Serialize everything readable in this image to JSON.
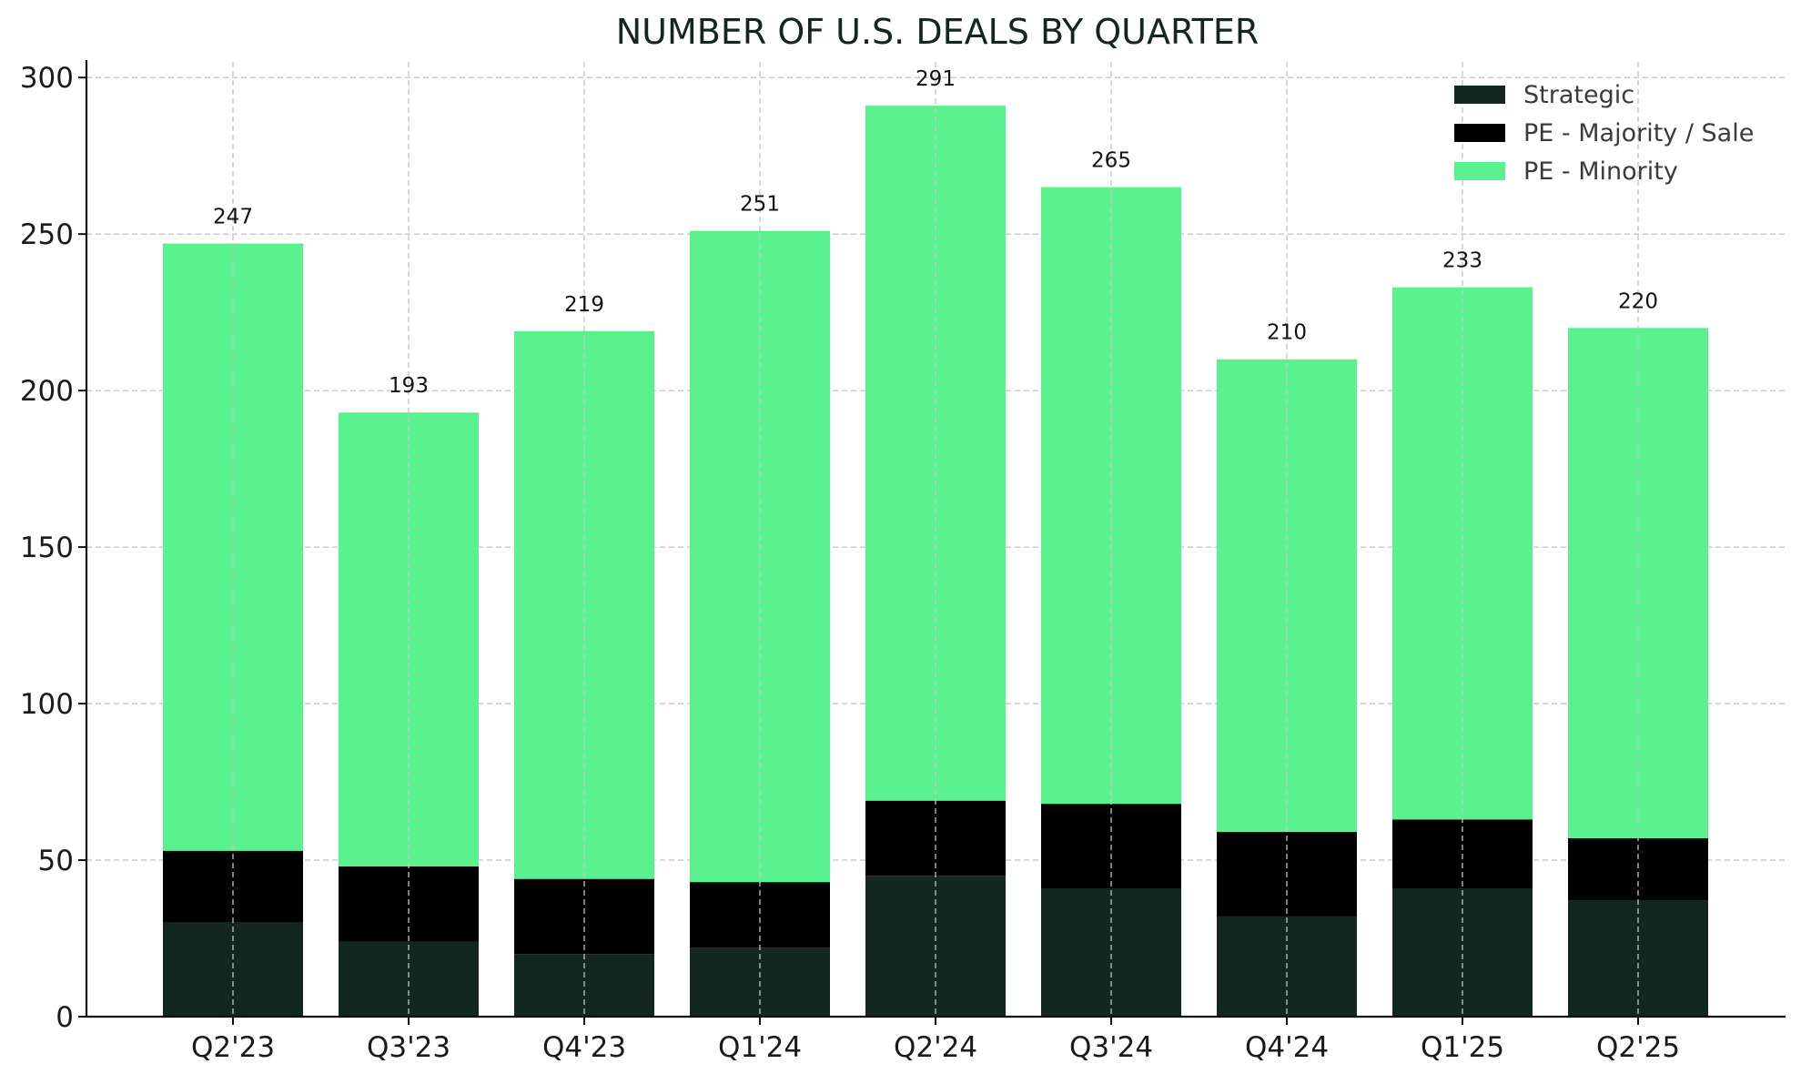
{
  "chart_data": {
    "type": "bar",
    "stacked": true,
    "title": "NUMBER OF U.S. DEALS BY QUARTER",
    "xlabel": "",
    "ylabel": "",
    "ylim": [
      0,
      305
    ],
    "yticks": [
      0,
      50,
      100,
      150,
      200,
      250,
      300
    ],
    "grid": true,
    "legend_position": "top-right",
    "categories": [
      "Q2'23",
      "Q3'23",
      "Q4'23",
      "Q1'24",
      "Q2'24",
      "Q3'24",
      "Q4'24",
      "Q1'25",
      "Q2'25"
    ],
    "series": [
      {
        "name": "Strategic",
        "color": "#12271f",
        "values": [
          30,
          24,
          20,
          22,
          45,
          41,
          32,
          41,
          37
        ]
      },
      {
        "name": "PE - Majority / Sale",
        "color": "#000000",
        "values": [
          23,
          24,
          24,
          21,
          24,
          27,
          27,
          22,
          20
        ]
      },
      {
        "name": "PE - Minority",
        "color": "#59f28f",
        "values": [
          194,
          145,
          175,
          208,
          222,
          197,
          151,
          170,
          163
        ]
      }
    ],
    "totals": [
      247,
      193,
      219,
      251,
      291,
      265,
      210,
      233,
      220
    ]
  }
}
